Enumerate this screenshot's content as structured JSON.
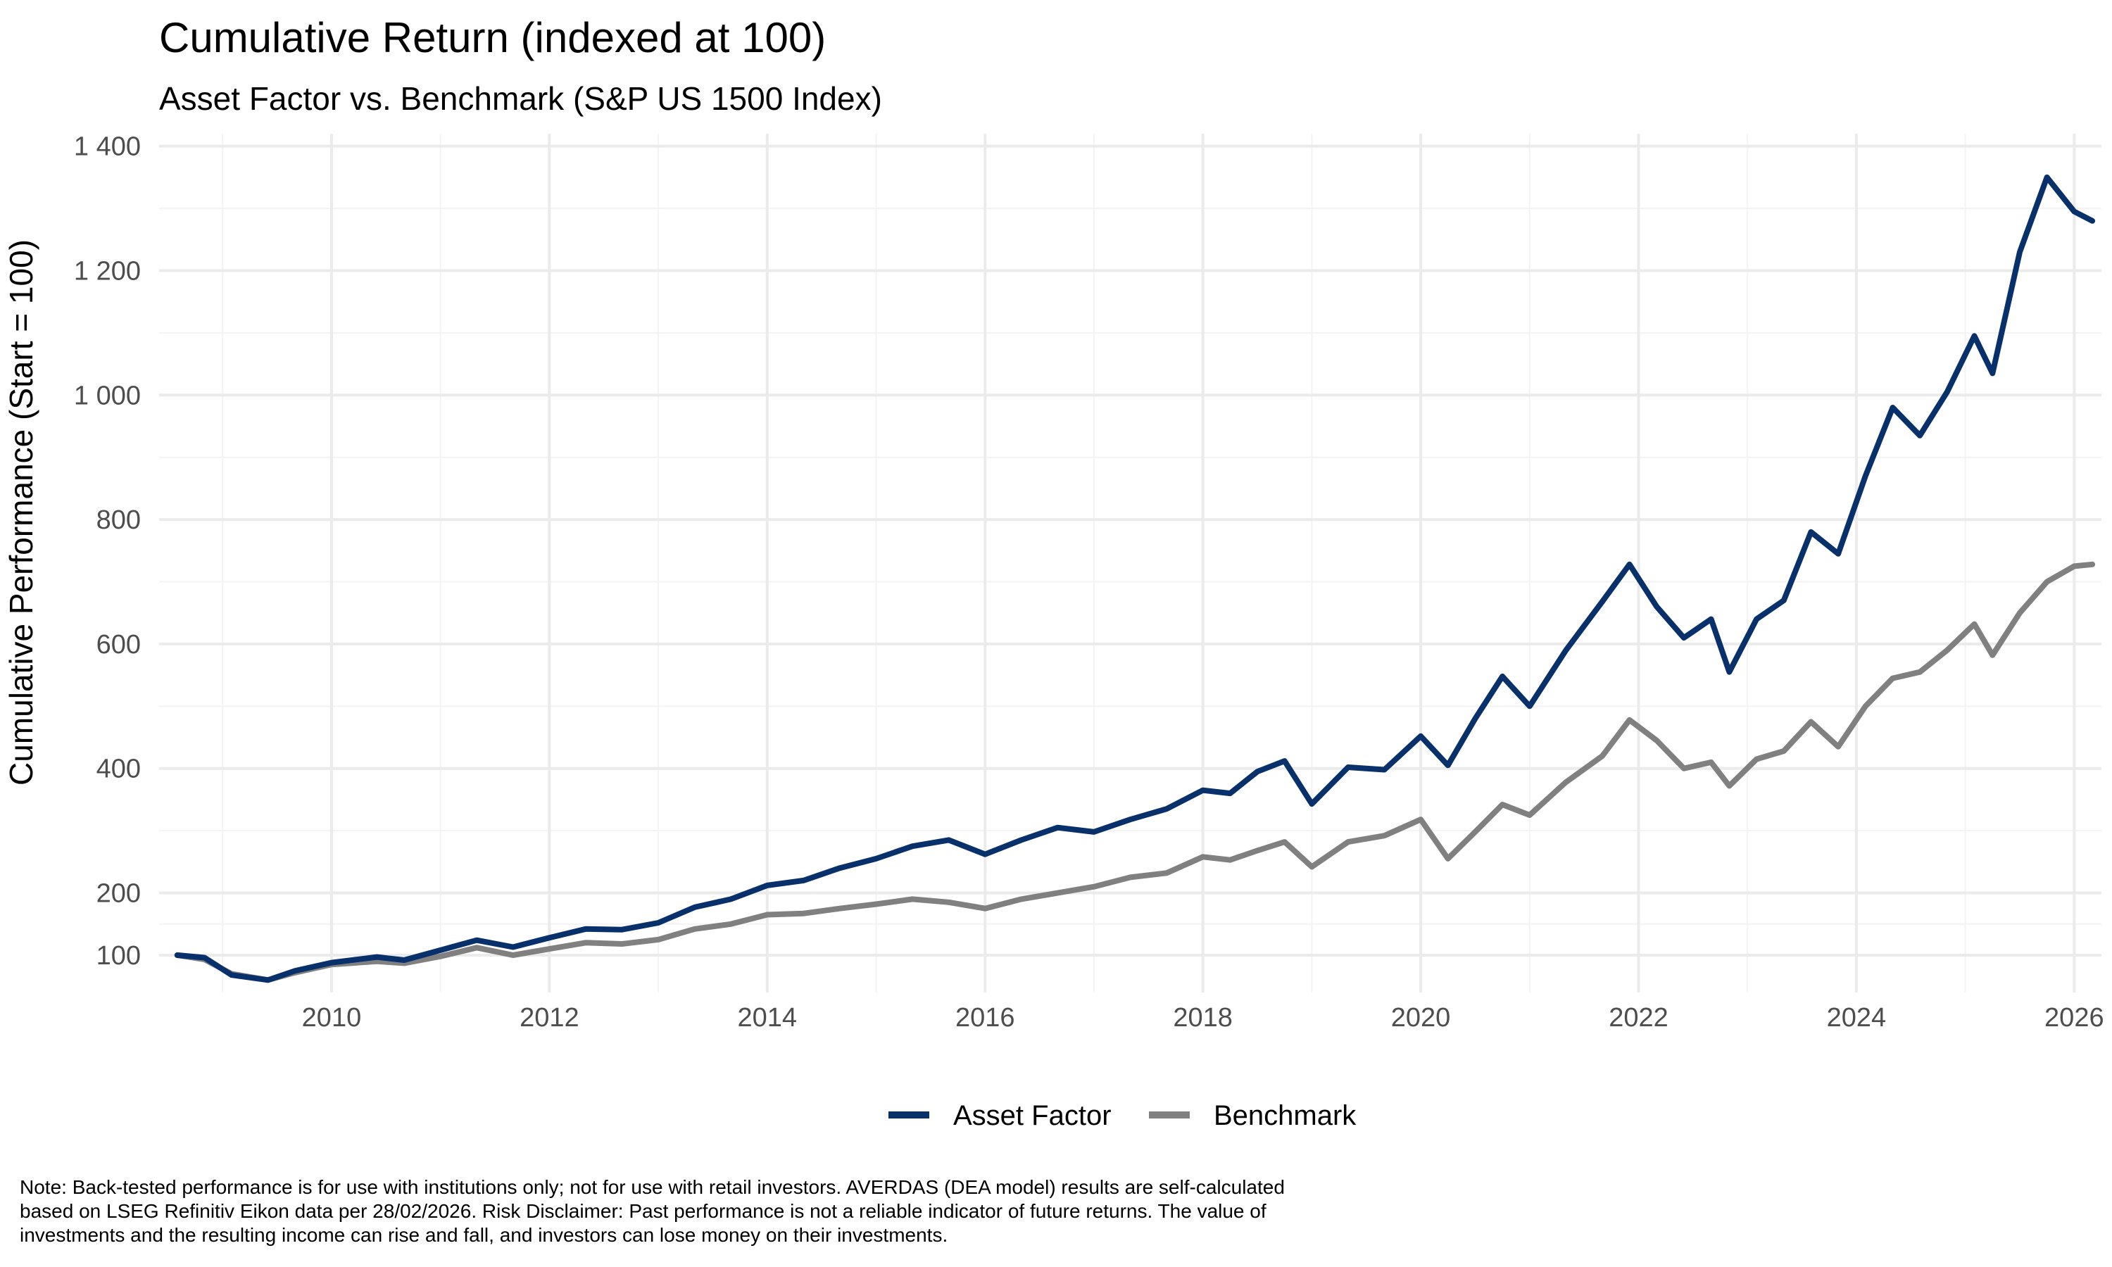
{
  "chart_data": {
    "type": "line",
    "title": "Cumulative Return (indexed at 100)",
    "subtitle": "Asset Factor vs. Benchmark (S&P US 1500 Index)",
    "xlabel": "",
    "ylabel": "Cumulative Performance (Start = 100)",
    "x_ticks": [
      "2010",
      "2012",
      "2014",
      "2016",
      "2018",
      "2020",
      "2022",
      "2024",
      "2026"
    ],
    "y_ticks": [
      "100",
      "200",
      "400",
      "600",
      "800",
      "1 000",
      "1 200",
      "1 400"
    ],
    "x_range": [
      "2008-06",
      "2026-04"
    ],
    "y_range": [
      40,
      1420
    ],
    "grid": true,
    "legend_position": "bottom",
    "series": [
      {
        "name": "Asset Factor",
        "color": "#08306b",
        "points": [
          [
            "2008-08",
            100
          ],
          [
            "2008-11",
            96
          ],
          [
            "2009-02",
            68
          ],
          [
            "2009-06",
            60
          ],
          [
            "2009-09",
            75
          ],
          [
            "2010-01",
            88
          ],
          [
            "2010-06",
            97
          ],
          [
            "2010-09",
            92
          ],
          [
            "2011-01",
            108
          ],
          [
            "2011-05",
            124
          ],
          [
            "2011-09",
            113
          ],
          [
            "2012-01",
            128
          ],
          [
            "2012-05",
            142
          ],
          [
            "2012-09",
            141
          ],
          [
            "2013-01",
            152
          ],
          [
            "2013-05",
            177
          ],
          [
            "2013-09",
            190
          ],
          [
            "2014-01",
            212
          ],
          [
            "2014-05",
            220
          ],
          [
            "2014-09",
            240
          ],
          [
            "2015-01",
            255
          ],
          [
            "2015-05",
            275
          ],
          [
            "2015-09",
            285
          ],
          [
            "2016-01",
            262
          ],
          [
            "2016-05",
            285
          ],
          [
            "2016-09",
            305
          ],
          [
            "2017-01",
            298
          ],
          [
            "2017-05",
            318
          ],
          [
            "2017-09",
            335
          ],
          [
            "2018-01",
            365
          ],
          [
            "2018-04",
            360
          ],
          [
            "2018-07",
            395
          ],
          [
            "2018-10",
            412
          ],
          [
            "2019-01",
            343
          ],
          [
            "2019-05",
            402
          ],
          [
            "2019-09",
            398
          ],
          [
            "2020-01",
            452
          ],
          [
            "2020-04",
            405
          ],
          [
            "2020-07",
            480
          ],
          [
            "2020-10",
            548
          ],
          [
            "2021-01",
            500
          ],
          [
            "2021-05",
            590
          ],
          [
            "2021-09",
            668
          ],
          [
            "2021-12",
            728
          ],
          [
            "2022-03",
            660
          ],
          [
            "2022-06",
            610
          ],
          [
            "2022-09",
            640
          ],
          [
            "2022-11",
            555
          ],
          [
            "2023-02",
            640
          ],
          [
            "2023-05",
            670
          ],
          [
            "2023-08",
            780
          ],
          [
            "2023-11",
            745
          ],
          [
            "2024-02",
            870
          ],
          [
            "2024-05",
            980
          ],
          [
            "2024-08",
            935
          ],
          [
            "2024-11",
            1005
          ],
          [
            "2025-02",
            1095
          ],
          [
            "2025-04",
            1035
          ],
          [
            "2025-07",
            1230
          ],
          [
            "2025-10",
            1350
          ],
          [
            "2026-01",
            1295
          ],
          [
            "2026-03",
            1280
          ]
        ]
      },
      {
        "name": "Benchmark",
        "color": "#808080",
        "points": [
          [
            "2008-08",
            100
          ],
          [
            "2008-11",
            93
          ],
          [
            "2009-02",
            70
          ],
          [
            "2009-06",
            60
          ],
          [
            "2009-09",
            72
          ],
          [
            "2010-01",
            85
          ],
          [
            "2010-06",
            90
          ],
          [
            "2010-09",
            87
          ],
          [
            "2011-01",
            98
          ],
          [
            "2011-05",
            112
          ],
          [
            "2011-09",
            100
          ],
          [
            "2012-01",
            110
          ],
          [
            "2012-05",
            120
          ],
          [
            "2012-09",
            118
          ],
          [
            "2013-01",
            125
          ],
          [
            "2013-05",
            142
          ],
          [
            "2013-09",
            150
          ],
          [
            "2014-01",
            165
          ],
          [
            "2014-05",
            167
          ],
          [
            "2014-09",
            175
          ],
          [
            "2015-01",
            182
          ],
          [
            "2015-05",
            190
          ],
          [
            "2015-09",
            185
          ],
          [
            "2016-01",
            175
          ],
          [
            "2016-05",
            190
          ],
          [
            "2016-09",
            200
          ],
          [
            "2017-01",
            210
          ],
          [
            "2017-05",
            225
          ],
          [
            "2017-09",
            232
          ],
          [
            "2018-01",
            258
          ],
          [
            "2018-04",
            253
          ],
          [
            "2018-07",
            268
          ],
          [
            "2018-10",
            282
          ],
          [
            "2019-01",
            242
          ],
          [
            "2019-05",
            282
          ],
          [
            "2019-09",
            292
          ],
          [
            "2020-01",
            318
          ],
          [
            "2020-04",
            255
          ],
          [
            "2020-07",
            298
          ],
          [
            "2020-10",
            342
          ],
          [
            "2021-01",
            325
          ],
          [
            "2021-05",
            378
          ],
          [
            "2021-09",
            420
          ],
          [
            "2021-12",
            478
          ],
          [
            "2022-03",
            445
          ],
          [
            "2022-06",
            400
          ],
          [
            "2022-09",
            410
          ],
          [
            "2022-11",
            372
          ],
          [
            "2023-02",
            415
          ],
          [
            "2023-05",
            428
          ],
          [
            "2023-08",
            475
          ],
          [
            "2023-11",
            435
          ],
          [
            "2024-02",
            500
          ],
          [
            "2024-05",
            545
          ],
          [
            "2024-08",
            555
          ],
          [
            "2024-11",
            590
          ],
          [
            "2025-02",
            632
          ],
          [
            "2025-04",
            582
          ],
          [
            "2025-07",
            650
          ],
          [
            "2025-10",
            700
          ],
          [
            "2026-01",
            725
          ],
          [
            "2026-03",
            728
          ]
        ]
      }
    ],
    "note": [
      "Note: Back-tested performance is for use with institutions only; not for use with retail investors. AVERDAS (DEA model) results are self-calculated",
      "based on LSEG Refinitiv Eikon data per 28/02/2026. Risk Disclaimer: Past performance is not a reliable indicator of future returns. The value of",
      "investments and the resulting income can rise and fall, and investors can lose money on their investments."
    ]
  }
}
